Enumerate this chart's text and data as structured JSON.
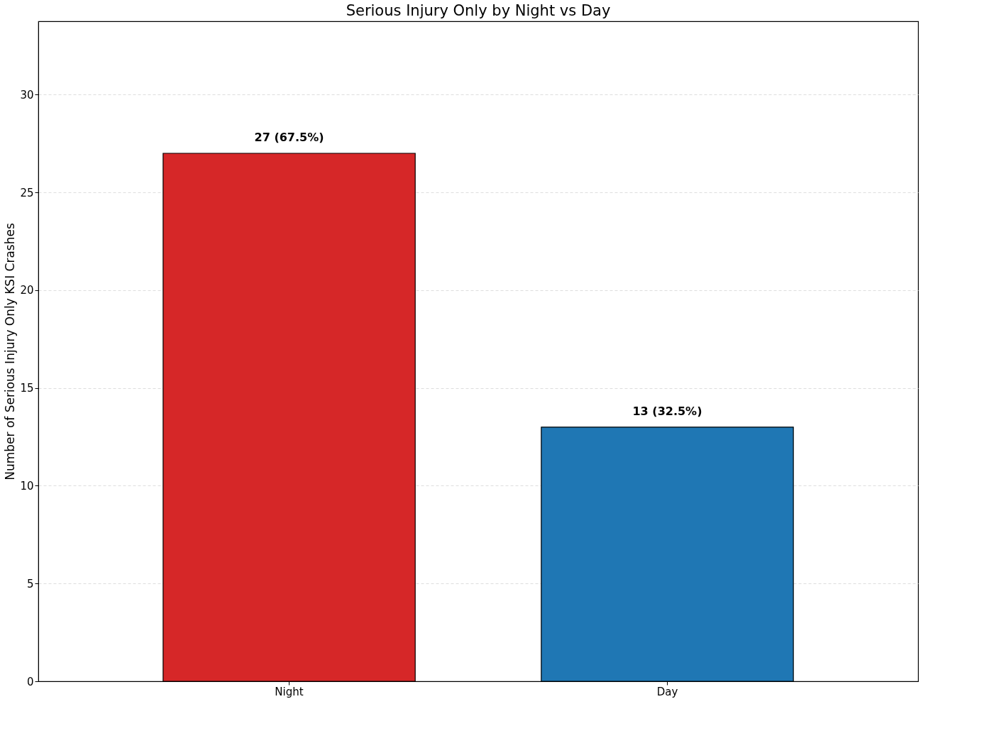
{
  "chart_data": {
    "type": "bar",
    "title": "Serious Injury Only by Night vs Day",
    "ylabel": "Number of Serious Injury Only KSI Crashes",
    "categories": [
      "Night",
      "Day"
    ],
    "values": [
      27,
      13
    ],
    "colors": [
      "#d62728",
      "#1f77b4"
    ],
    "value_labels": [
      "27 (67.5%)",
      "13 (32.5%)"
    ],
    "ylim": [
      0,
      33.75
    ],
    "yticks": [
      0,
      5,
      10,
      15,
      20,
      25,
      30
    ],
    "grid": "y",
    "legend": false
  }
}
